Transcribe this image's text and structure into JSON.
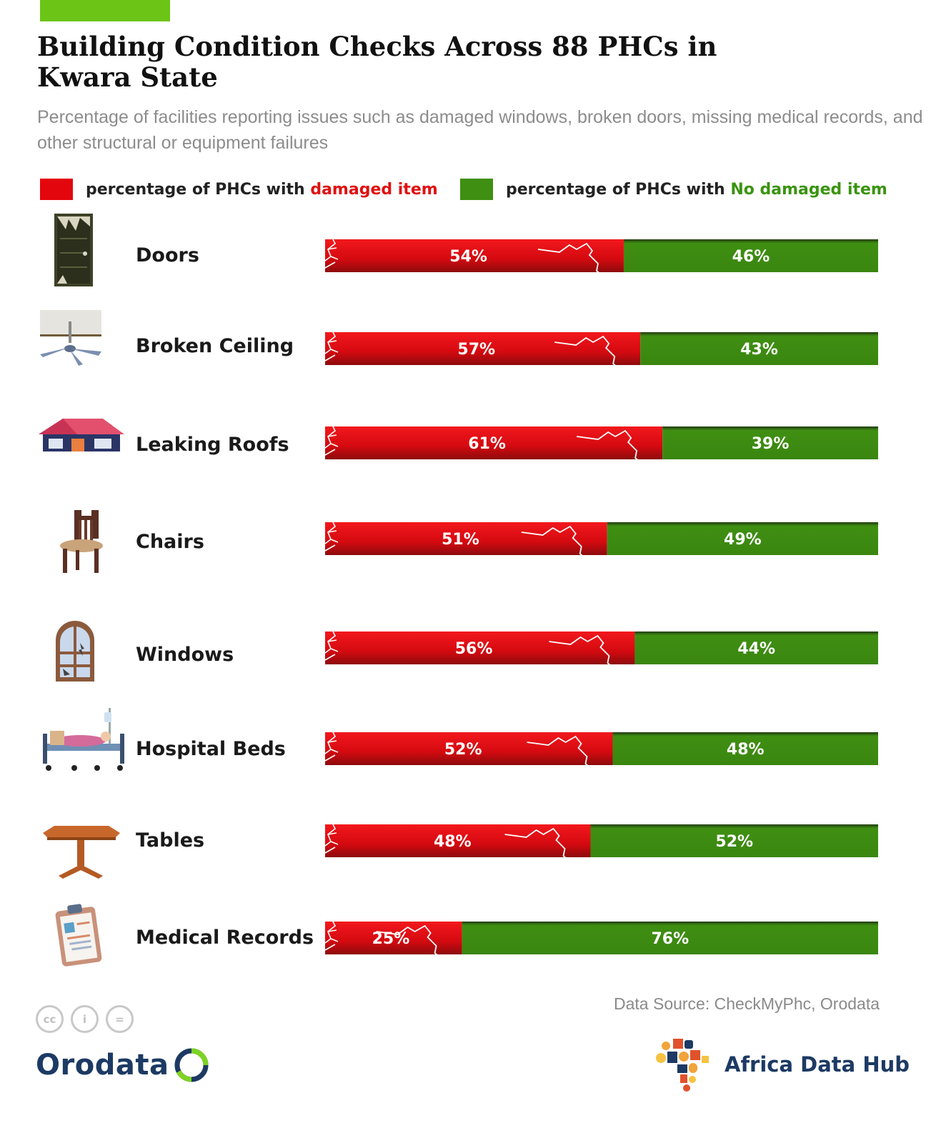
{
  "header": {
    "title": "Building Condition Checks Across 88 PHCs in Kwara State",
    "subtitle": "Percentage of facilities reporting issues such as damaged windows, broken doors, missing medical records, and other structural or equipment failures"
  },
  "legend": {
    "damaged_prefix": "percentage of PHCs with ",
    "damaged_highlight": "damaged item",
    "ok_prefix": "percentage of PHCs with ",
    "ok_highlight": "No damaged item"
  },
  "colors": {
    "damaged": "#e3070d",
    "ok": "#3f8f12",
    "accent_bar": "#6cc417"
  },
  "chart_data": {
    "type": "bar",
    "stacked": true,
    "orientation": "horizontal",
    "categories": [
      "Doors",
      "Broken Ceiling",
      "Leaking Roofs",
      "Chairs",
      "Windows",
      "Hospital Beds",
      "Tables",
      "Medical Records"
    ],
    "series": [
      {
        "name": "percentage of PHCs with damaged item",
        "values": [
          54,
          57,
          61,
          51,
          56,
          52,
          48,
          25
        ]
      },
      {
        "name": "percentage of PHCs with No damaged item",
        "values": [
          46,
          43,
          39,
          49,
          44,
          48,
          52,
          76
        ]
      }
    ],
    "value_labels": {
      "damaged": [
        "54%",
        "57%",
        "61%",
        "51%",
        "56%",
        "52%",
        "48%",
        "25%"
      ],
      "ok": [
        "46%",
        "43%",
        "39%",
        "49%",
        "44%",
        "48%",
        "52%",
        "76%"
      ]
    },
    "icons": [
      "door-icon",
      "ceiling-fan-icon",
      "roof-icon",
      "chair-icon",
      "window-icon",
      "hospital-bed-icon",
      "table-icon",
      "clipboard-icon"
    ]
  },
  "footer": {
    "source": "Data Source: CheckMyPhc, Orodata",
    "cc_icons": [
      "cc",
      "by",
      "nd"
    ],
    "cc_labels": [
      "cc",
      "i",
      "="
    ],
    "orodata_logo": "Orodata",
    "adh_logo": "Africa Data Hub"
  }
}
